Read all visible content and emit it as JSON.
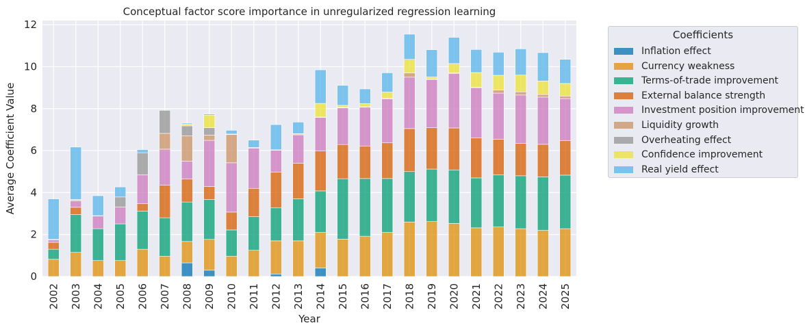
{
  "chart_data": {
    "type": "bar",
    "stacked": true,
    "title": "Conceptual factor score importance in unregularized regression learning",
    "xlabel": "Year",
    "ylabel": "Average Coefficient Value",
    "ylim": [
      0,
      12.2
    ],
    "yticks": [
      "0",
      "2",
      "4",
      "6",
      "8",
      "10",
      "12"
    ],
    "grid": true,
    "legend_title": "Coefficients",
    "legend_position": "outside-right",
    "categories": [
      "2002",
      "2003",
      "2004",
      "2005",
      "2006",
      "2007",
      "2008",
      "2009",
      "2010",
      "2011",
      "2012",
      "2013",
      "2014",
      "2015",
      "2016",
      "2017",
      "2018",
      "2019",
      "2020",
      "2021",
      "2022",
      "2023",
      "2024",
      "2025"
    ],
    "series": [
      {
        "name": "Inflation effect",
        "color": "#0173b2",
        "values": [
          0,
          0,
          0,
          0,
          0,
          0,
          0.65,
          0.3,
          0,
          0,
          0.12,
          0,
          0.4,
          0,
          0,
          0,
          0,
          0,
          0,
          0,
          0,
          0,
          0,
          0
        ]
      },
      {
        "name": "Currency weakness",
        "color": "#de8f05",
        "values": [
          0.82,
          1.15,
          0.76,
          0.76,
          1.3,
          0.97,
          1.02,
          1.47,
          0.97,
          1.25,
          1.58,
          1.7,
          1.7,
          1.78,
          1.92,
          2.1,
          2.6,
          2.62,
          2.53,
          2.32,
          2.36,
          2.28,
          2.2,
          2.28
        ]
      },
      {
        "name": "Terms-of-trade improvement",
        "color": "#029e73",
        "values": [
          0.48,
          1.8,
          1.52,
          1.75,
          1.82,
          1.83,
          1.88,
          1.9,
          1.25,
          1.6,
          1.57,
          2.0,
          1.98,
          2.88,
          2.75,
          2.57,
          2.4,
          2.5,
          2.55,
          2.38,
          2.48,
          2.52,
          2.55,
          2.55
        ]
      },
      {
        "name": "External balance strength",
        "color": "#d55e00",
        "values": [
          0.33,
          0.35,
          0,
          0,
          0.35,
          1.55,
          1.1,
          0.62,
          0.85,
          1.35,
          1.7,
          1.7,
          1.9,
          1.63,
          1.55,
          1.7,
          2.05,
          1.97,
          2.0,
          1.9,
          1.7,
          1.55,
          1.55,
          1.65
        ]
      },
      {
        "name": "Investment position improvement",
        "color": "#cc78bc",
        "values": [
          0.12,
          0.3,
          0.6,
          0.8,
          1.38,
          1.72,
          0.85,
          2.2,
          2.35,
          1.92,
          1.05,
          1.35,
          1.6,
          1.75,
          1.85,
          2.1,
          2.45,
          2.3,
          2.6,
          2.4,
          2.2,
          2.3,
          2.25,
          2.0
        ]
      },
      {
        "name": "Liquidity growth",
        "color": "#ca9161",
        "values": [
          0.02,
          0.05,
          0.02,
          0,
          0,
          0.75,
          1.2,
          0.25,
          1.35,
          0.03,
          0.02,
          0.04,
          0.02,
          0.02,
          0.02,
          0.02,
          0.2,
          0.02,
          0.02,
          0.02,
          0.15,
          0.15,
          0.12,
          0.12
        ]
      },
      {
        "name": "Overheating effect",
        "color": "#949494",
        "values": [
          0,
          0.02,
          0,
          0.48,
          1.05,
          1.1,
          0.48,
          0.35,
          0.02,
          0,
          0,
          0,
          0,
          0,
          0,
          0,
          0,
          0,
          0,
          0,
          0,
          0,
          0,
          0
        ]
      },
      {
        "name": "Confidence improvement",
        "color": "#ece133",
        "values": [
          0,
          0,
          0,
          0,
          0,
          0,
          0.08,
          0.6,
          0,
          0,
          0,
          0.02,
          0.65,
          0.1,
          0.15,
          0.3,
          0.65,
          0.1,
          0.45,
          0.7,
          0.7,
          0.8,
          0.65,
          0.6
        ]
      },
      {
        "name": "Real yield effect",
        "color": "#56b4e9",
        "values": [
          1.93,
          2.5,
          0.95,
          0.48,
          0.15,
          0,
          0.05,
          0.05,
          0.18,
          0.35,
          1.2,
          0.55,
          1.6,
          0.95,
          0.7,
          0.92,
          1.2,
          1.3,
          1.25,
          1.1,
          1.1,
          1.25,
          1.35,
          1.15
        ]
      }
    ]
  }
}
